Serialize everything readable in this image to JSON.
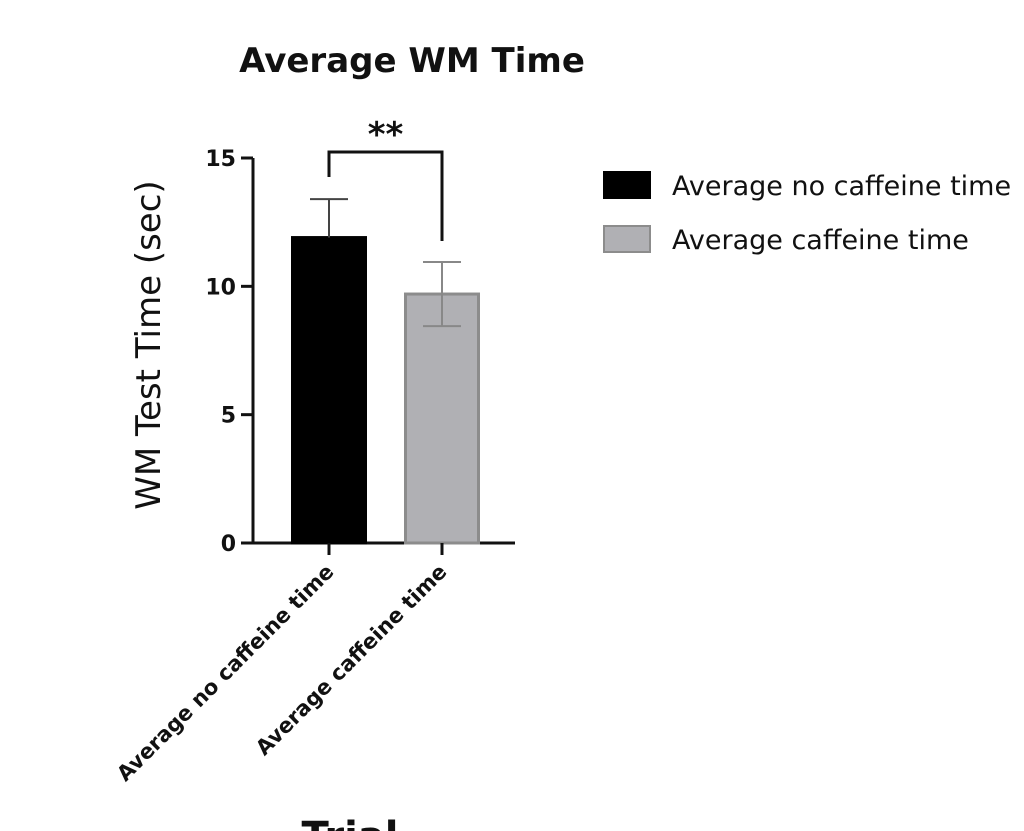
{
  "chart_data": {
    "type": "bar",
    "title": "Average WM Time",
    "xlabel": "Trial",
    "ylabel": "WM Test Time (sec)",
    "ylim": [
      0,
      15
    ],
    "yticks": [
      "0",
      "5",
      "10",
      "15"
    ],
    "categories": [
      "Average no caffeine time",
      "Average caffeine time"
    ],
    "values": [
      11.9,
      9.7
    ],
    "error": [
      1.5,
      1.25
    ],
    "colors": [
      "#000000",
      "#b0b0b4"
    ],
    "edge_colors": [
      "#000000",
      "#8c8c8c"
    ],
    "significance": {
      "label": "**",
      "between": [
        0,
        1
      ]
    },
    "legend": {
      "position": "right",
      "entries": [
        "Average no caffeine time",
        "Average caffeine time"
      ]
    },
    "grid": false
  }
}
